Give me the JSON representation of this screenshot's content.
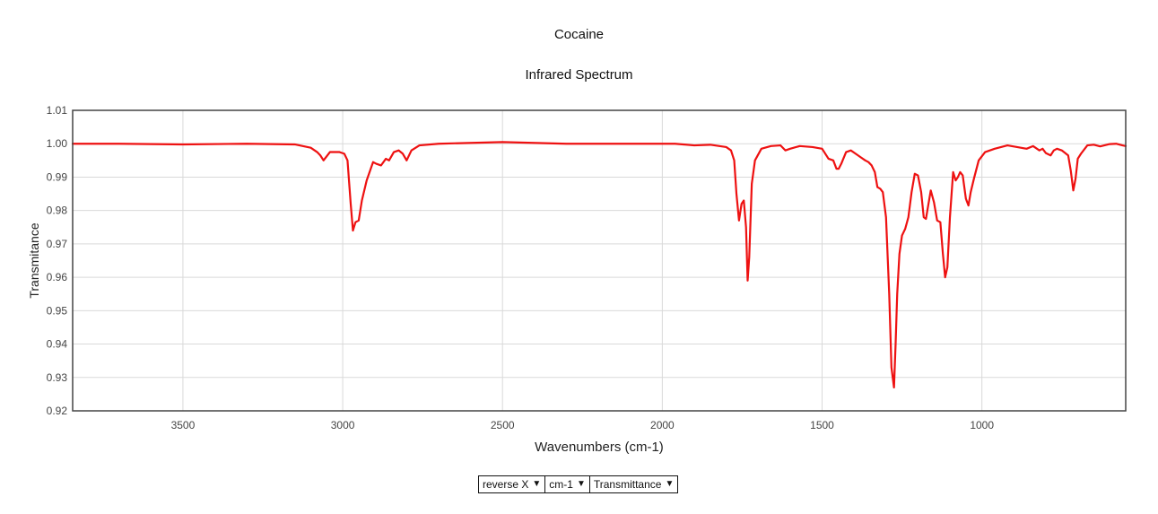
{
  "chart_data": {
    "type": "line",
    "title": "Cocaine",
    "subtitle": "Infrared Spectrum",
    "xlabel": "Wavenumbers (cm-1)",
    "ylabel": "Transmitance",
    "xlim": [
      3845,
      550
    ],
    "ylim": [
      0.92,
      1.01
    ],
    "x_reversed": true,
    "grid": true,
    "x_ticks": [
      3500,
      3000,
      2500,
      2000,
      1500,
      1000
    ],
    "y_ticks": [
      "0.92",
      "0.93",
      "0.94",
      "0.95",
      "0.96",
      "0.97",
      "0.98",
      "0.99",
      "1.00",
      "1.01"
    ],
    "series": [
      {
        "color": "#ee1111",
        "x": [
          3845,
          3700,
          3500,
          3300,
          3150,
          3100,
          3080,
          3070,
          3060,
          3040,
          3010,
          2995,
          2985,
          2975,
          2968,
          2960,
          2950,
          2940,
          2925,
          2905,
          2895,
          2880,
          2865,
          2855,
          2840,
          2825,
          2812,
          2800,
          2785,
          2760,
          2700,
          2500,
          2300,
          2100,
          1960,
          1900,
          1850,
          1800,
          1785,
          1775,
          1768,
          1760,
          1752,
          1745,
          1738,
          1733,
          1728,
          1720,
          1710,
          1690,
          1660,
          1630,
          1615,
          1600,
          1570,
          1530,
          1500,
          1480,
          1465,
          1455,
          1448,
          1440,
          1425,
          1410,
          1395,
          1380,
          1365,
          1355,
          1345,
          1335,
          1327,
          1318,
          1310,
          1300,
          1290,
          1283,
          1275,
          1270,
          1265,
          1258,
          1250,
          1240,
          1230,
          1220,
          1210,
          1200,
          1190,
          1182,
          1175,
          1168,
          1160,
          1150,
          1140,
          1130,
          1122,
          1115,
          1108,
          1100,
          1090,
          1082,
          1075,
          1068,
          1060,
          1050,
          1042,
          1035,
          1025,
          1010,
          990,
          960,
          920,
          890,
          860,
          840,
          820,
          810,
          800,
          785,
          775,
          765,
          750,
          730,
          722,
          714,
          707,
          700,
          690,
          670,
          650,
          630,
          600,
          580,
          560,
          550
        ],
        "values": [
          1.0,
          1.0,
          0.9998,
          1.0,
          0.9998,
          0.9988,
          0.9975,
          0.9965,
          0.995,
          0.9975,
          0.9975,
          0.997,
          0.995,
          0.982,
          0.974,
          0.9765,
          0.977,
          0.983,
          0.989,
          0.9945,
          0.994,
          0.9935,
          0.9955,
          0.995,
          0.9975,
          0.998,
          0.997,
          0.995,
          0.998,
          0.9995,
          1.0,
          1.0005,
          1.0,
          1.0,
          1.0,
          0.9995,
          0.9997,
          0.999,
          0.998,
          0.995,
          0.985,
          0.977,
          0.982,
          0.983,
          0.975,
          0.959,
          0.966,
          0.988,
          0.995,
          0.9985,
          0.9993,
          0.9995,
          0.998,
          0.9985,
          0.9993,
          0.999,
          0.9985,
          0.9955,
          0.995,
          0.9925,
          0.9925,
          0.994,
          0.9975,
          0.998,
          0.997,
          0.996,
          0.995,
          0.9945,
          0.9935,
          0.9915,
          0.987,
          0.9865,
          0.9855,
          0.978,
          0.955,
          0.933,
          0.927,
          0.94,
          0.955,
          0.967,
          0.9725,
          0.9745,
          0.978,
          0.9855,
          0.991,
          0.9905,
          0.9855,
          0.978,
          0.9775,
          0.9815,
          0.986,
          0.9825,
          0.977,
          0.9765,
          0.967,
          0.96,
          0.963,
          0.978,
          0.9915,
          0.989,
          0.99,
          0.9915,
          0.9905,
          0.9835,
          0.9815,
          0.9855,
          0.9895,
          0.995,
          0.9975,
          0.9985,
          0.9995,
          0.999,
          0.9985,
          0.9993,
          0.998,
          0.9985,
          0.9972,
          0.9965,
          0.998,
          0.9985,
          0.998,
          0.9965,
          0.992,
          0.986,
          0.9895,
          0.9955,
          0.997,
          0.9995,
          0.9997,
          0.9992,
          0.9999,
          1.0,
          0.9995,
          0.9993
        ]
      }
    ]
  },
  "controls": {
    "direction_label": "reverse X",
    "unit_label": "cm-1",
    "mode_label": "Transmittance",
    "arrow_glyph": "▼"
  }
}
